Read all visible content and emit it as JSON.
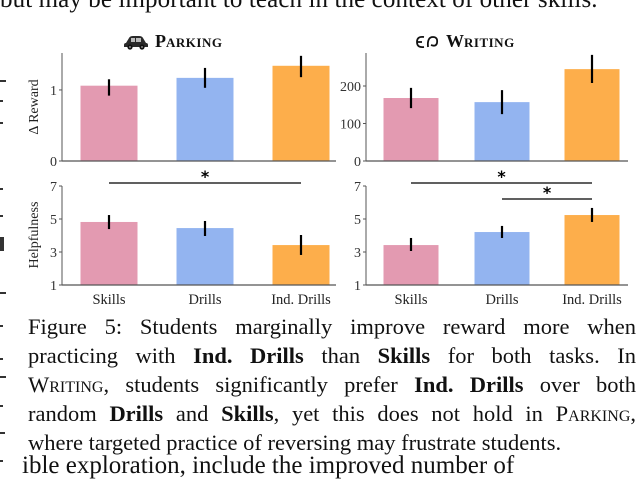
{
  "page": {
    "top_partial_text": "but may be important to teach in the context of other skills.",
    "bottom_partial_text": "ible exploration, include the improved number of"
  },
  "figure": {
    "label": "Figure 5:",
    "panels": [
      {
        "id": "parking",
        "title": "Parking",
        "icon": "car-icon",
        "icon_glyph": "🚗"
      },
      {
        "id": "writing",
        "title": "Writing",
        "icon": "writing-icon",
        "icon_glyph": "ᘓᑭ"
      }
    ],
    "colors": {
      "skills": "#e39ab1",
      "drills": "#93b4f0",
      "ind_drills": "#fdae4b",
      "axis": "#555555",
      "error": "#000000"
    },
    "caption": {
      "lines": [
        [
          {
            "t": "Figure 5:  Students marginally improve reward more when",
            "s": ""
          }
        ],
        [
          {
            "t": "practicing with ",
            "s": ""
          },
          {
            "t": "Ind.  Drills",
            "s": "b"
          },
          {
            "t": " than ",
            "s": ""
          },
          {
            "t": "Skills",
            "s": "b"
          },
          {
            "t": " for both tasks.  In",
            "s": ""
          }
        ],
        [
          {
            "t": "Writing",
            "s": "sc"
          },
          {
            "t": ", students significantly prefer ",
            "s": ""
          },
          {
            "t": "Ind. Drills",
            "s": "b"
          },
          {
            "t": " over both",
            "s": ""
          }
        ],
        [
          {
            "t": "random ",
            "s": ""
          },
          {
            "t": "Drills",
            "s": "b"
          },
          {
            "t": " and ",
            "s": ""
          },
          {
            "t": "Skills",
            "s": "b"
          },
          {
            "t": ", yet this does not hold in ",
            "s": ""
          },
          {
            "t": "Parking",
            "s": "sc"
          },
          {
            "t": ",",
            "s": ""
          }
        ],
        [
          {
            "t": "where targeted practice of reversing may frustrate students.",
            "s": ""
          }
        ]
      ]
    }
  },
  "chart_data": [
    {
      "type": "bar",
      "title": "Parking",
      "panel": "top-left",
      "categories": [
        "Skills",
        "Drills",
        "Ind. Drills"
      ],
      "values": [
        1.06,
        1.17,
        1.34
      ],
      "error_low": [
        0.92,
        1.03,
        1.18
      ],
      "error_high": [
        1.15,
        1.31,
        1.48
      ],
      "xlabel": "",
      "ylabel": "Δ Reward",
      "ylim": [
        0,
        1.52
      ],
      "yticks": [
        0,
        1
      ],
      "grid": false
    },
    {
      "type": "bar",
      "title": "Writing",
      "panel": "top-right",
      "categories": [
        "Skills",
        "Drills",
        "Ind. Drills"
      ],
      "values": [
        168,
        157,
        245
      ],
      "error_low": [
        141,
        125,
        208
      ],
      "error_high": [
        195,
        189,
        283
      ],
      "xlabel": "",
      "ylabel": "",
      "ylim": [
        0,
        288
      ],
      "yticks": [
        0,
        100,
        200
      ],
      "grid": false
    },
    {
      "type": "bar",
      "title": "",
      "panel": "bottom-left",
      "categories": [
        "Skills",
        "Drills",
        "Ind. Drills"
      ],
      "values": [
        4.82,
        4.45,
        3.42
      ],
      "error_low": [
        4.39,
        3.97,
        2.82
      ],
      "error_high": [
        5.24,
        4.88,
        4.03
      ],
      "xlabel": "",
      "ylabel": "Helpfulness",
      "ylim": [
        1,
        7
      ],
      "yticks": [
        1,
        3,
        5,
        7
      ],
      "grid": false,
      "annotations": [
        {
          "type": "significance",
          "from": "Skills",
          "to": "Ind. Drills",
          "label": "*"
        }
      ]
    },
    {
      "type": "bar",
      "title": "",
      "panel": "bottom-right",
      "categories": [
        "Skills",
        "Drills",
        "Ind. Drills"
      ],
      "values": [
        3.42,
        4.21,
        5.24
      ],
      "error_low": [
        3.06,
        3.85,
        4.82
      ],
      "error_high": [
        3.85,
        4.58,
        5.67
      ],
      "xlabel": "",
      "ylabel": "",
      "ylim": [
        1,
        7
      ],
      "yticks": [
        1,
        3,
        5,
        7
      ],
      "grid": false,
      "annotations": [
        {
          "type": "significance",
          "from": "Skills",
          "to": "Ind. Drills",
          "label": "*"
        },
        {
          "type": "significance",
          "from": "Drills",
          "to": "Ind. Drills",
          "label": "*"
        }
      ]
    }
  ]
}
